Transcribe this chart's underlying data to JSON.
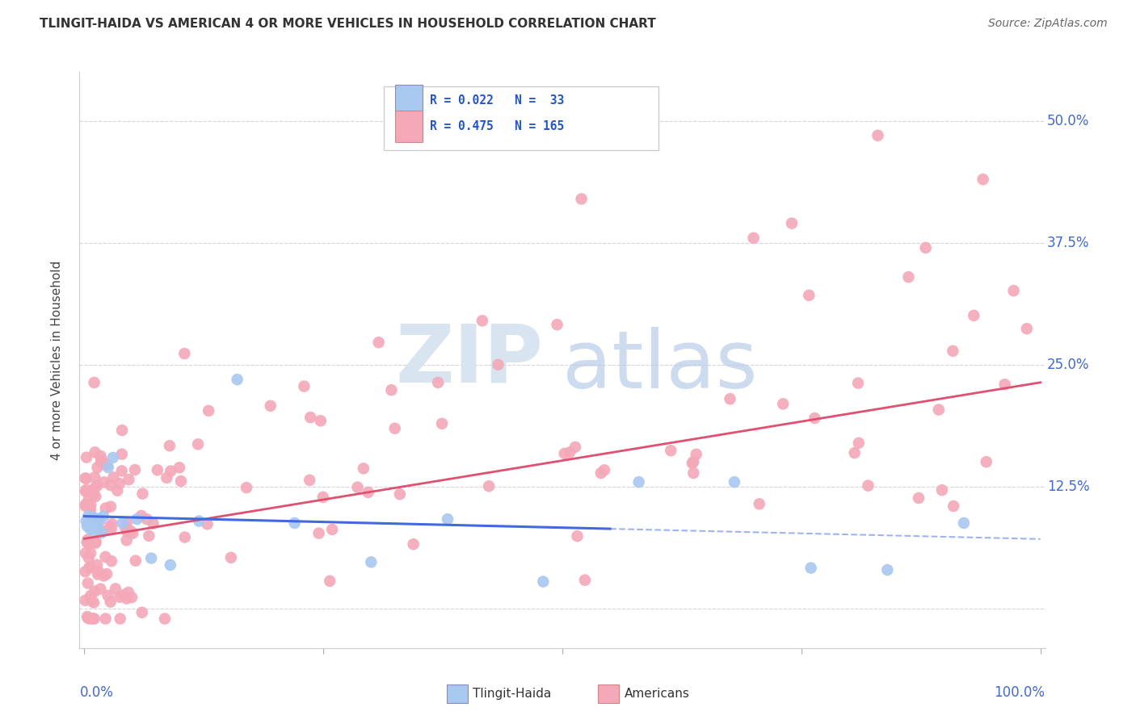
{
  "title": "TLINGIT-HAIDA VS AMERICAN 4 OR MORE VEHICLES IN HOUSEHOLD CORRELATION CHART",
  "source": "Source: ZipAtlas.com",
  "ylabel": "4 or more Vehicles in Household",
  "tlingit_color": "#A8C8F0",
  "american_color": "#F4A8B8",
  "tlingit_line_color": "#4169E1",
  "american_line_color": "#E05070",
  "background_color": "#FFFFFF",
  "grid_color": "#C8C8D0",
  "ytick_values": [
    0.0,
    0.125,
    0.25,
    0.375,
    0.5
  ],
  "ytick_labels": [
    "",
    "12.5%",
    "25.0%",
    "37.5%",
    "50.0%"
  ],
  "tick_color": "#4169CC",
  "title_color": "#333333",
  "watermark_zip_color": "#D8E4F0",
  "watermark_atlas_color": "#B8CCE8"
}
